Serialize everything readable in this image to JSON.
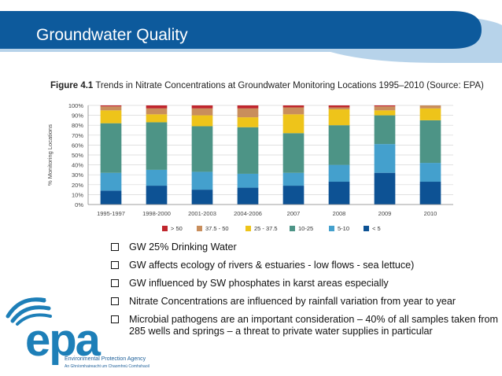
{
  "slide": {
    "title": "Groundwater Quality",
    "header_color": "#0d5a9c"
  },
  "figure": {
    "label": "Figure 4.1",
    "caption": "Trends in Nitrate Concentrations at Groundwater Monitoring Locations 1995–2010 (Source: EPA)"
  },
  "chart_data": {
    "type": "bar",
    "stacked": true,
    "title": "",
    "xlabel": "",
    "ylabel": "% Monitoring Locations",
    "ylim": [
      0,
      100
    ],
    "y_ticks": [
      "0%",
      "10%",
      "20%",
      "30%",
      "40%",
      "50%",
      "60%",
      "70%",
      "80%",
      "90%",
      "100%"
    ],
    "categories": [
      "1995-1997",
      "1998-2000",
      "2001-2003",
      "2004-2006",
      "2007",
      "2008",
      "2009",
      "2010"
    ],
    "grid": true,
    "legend_position": "bottom",
    "series": [
      {
        "name": "< 5",
        "color": "#0d5294",
        "values": [
          14,
          19,
          15,
          17,
          19,
          23,
          32,
          23
        ]
      },
      {
        "name": "5-10",
        "color": "#44a0cd",
        "values": [
          18,
          16,
          18,
          14,
          13,
          17,
          29,
          19
        ]
      },
      {
        "name": "10-25",
        "color": "#4d9486",
        "values": [
          50,
          48,
          46,
          47,
          40,
          40,
          29,
          43
        ]
      },
      {
        "name": "25 - 37.5",
        "color": "#eec41a",
        "values": [
          13,
          8,
          11,
          10,
          19,
          16,
          5,
          12
        ]
      },
      {
        "name": "37.5 - 50",
        "color": "#c98e5c",
        "values": [
          4,
          6,
          7,
          9,
          7,
          2,
          4,
          3
        ]
      },
      {
        "name": "> 50",
        "color": "#c0262d",
        "values": [
          1,
          3,
          3,
          3,
          2,
          2,
          1,
          0
        ]
      }
    ],
    "legend_order": [
      "> 50",
      "37.5 - 50",
      "25 - 37.5",
      "10-25",
      "5-10",
      "< 5"
    ]
  },
  "bullets": [
    "GW 25% Drinking Water",
    "GW affects ecology of rivers & estuaries - low flows - sea lettuce)",
    "GW influenced by SW phosphates in karst areas especially",
    "Nitrate Concentrations are influenced by rainfall variation from year to year",
    "Microbial pathogens are an important consideration – 40% of all samples taken from 285 wells and springs – a threat to private water supplies in particular"
  ],
  "logo": {
    "icon": "epa-wave-logo-icon",
    "wordmark": "epa",
    "name": "Environmental Protection Agency",
    "irish_name": "An Ghníomhaireacht um Chaomhnú Comhshaoil",
    "color": "#1d7fb8"
  }
}
